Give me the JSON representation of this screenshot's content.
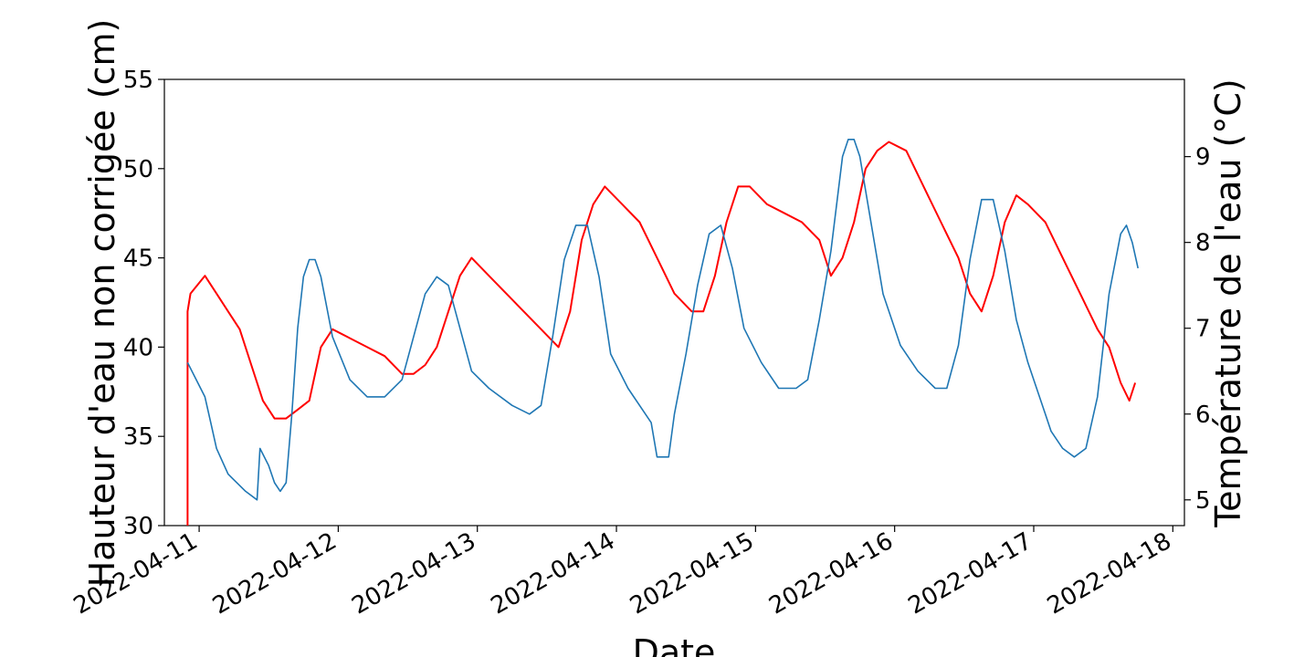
{
  "chart_data": {
    "type": "line",
    "title": "",
    "xlabel": "Date",
    "ylabel_left": "Hauteur d'eau non corrigée (cm)",
    "ylabel_right": "Température de l'eau (°C)",
    "x_tick_labels": [
      "2022-04-11",
      "2022-04-12",
      "2022-04-13",
      "2022-04-14",
      "2022-04-15",
      "2022-04-16",
      "2022-04-17",
      "2022-04-18"
    ],
    "y_left_ticks": [
      "30",
      "35",
      "40",
      "45",
      "50",
      "55"
    ],
    "y_right_ticks": [
      "5",
      "6",
      "7",
      "8",
      "9"
    ],
    "xlim": [
      "2022-04-10T18:00",
      "2022-04-18T02:00"
    ],
    "ylim_left": [
      30,
      55
    ],
    "ylim_right": [
      4.7,
      9.9
    ],
    "grid": false,
    "series": [
      {
        "axis": "left",
        "color": "#ff0000",
        "points": [
          [
            "2022-04-10T22:00",
            30
          ],
          [
            "2022-04-10T22:00",
            42
          ],
          [
            "2022-04-10T22:30",
            43
          ],
          [
            "2022-04-11T01:00",
            44
          ],
          [
            "2022-04-11T03:00",
            43
          ],
          [
            "2022-04-11T05:00",
            42
          ],
          [
            "2022-04-11T07:00",
            41
          ],
          [
            "2022-04-11T09:00",
            39
          ],
          [
            "2022-04-11T11:00",
            37
          ],
          [
            "2022-04-11T13:00",
            36
          ],
          [
            "2022-04-11T15:00",
            36
          ],
          [
            "2022-04-11T17:00",
            36.5
          ],
          [
            "2022-04-11T19:00",
            37
          ],
          [
            "2022-04-11T21:00",
            40
          ],
          [
            "2022-04-11T23:00",
            41
          ],
          [
            "2022-04-12T02:00",
            40.5
          ],
          [
            "2022-04-12T05:00",
            40
          ],
          [
            "2022-04-12T08:00",
            39.5
          ],
          [
            "2022-04-12T11:00",
            38.5
          ],
          [
            "2022-04-12T13:00",
            38.5
          ],
          [
            "2022-04-12T15:00",
            39
          ],
          [
            "2022-04-12T17:00",
            40
          ],
          [
            "2022-04-12T19:00",
            42
          ],
          [
            "2022-04-12T21:00",
            44
          ],
          [
            "2022-04-12T23:00",
            45
          ],
          [
            "2022-04-13T02:00",
            44
          ],
          [
            "2022-04-13T05:00",
            43
          ],
          [
            "2022-04-13T08:00",
            42
          ],
          [
            "2022-04-13T11:00",
            41
          ],
          [
            "2022-04-13T14:00",
            40
          ],
          [
            "2022-04-13T16:00",
            42
          ],
          [
            "2022-04-13T18:00",
            46
          ],
          [
            "2022-04-13T20:00",
            48
          ],
          [
            "2022-04-13T22:00",
            49
          ],
          [
            "2022-04-14T01:00",
            48
          ],
          [
            "2022-04-14T04:00",
            47
          ],
          [
            "2022-04-14T07:00",
            45
          ],
          [
            "2022-04-14T10:00",
            43
          ],
          [
            "2022-04-14T13:00",
            42
          ],
          [
            "2022-04-14T15:00",
            42
          ],
          [
            "2022-04-14T17:00",
            44
          ],
          [
            "2022-04-14T19:00",
            47
          ],
          [
            "2022-04-14T21:00",
            49
          ],
          [
            "2022-04-14T23:00",
            49
          ],
          [
            "2022-04-15T02:00",
            48
          ],
          [
            "2022-04-15T05:00",
            47.5
          ],
          [
            "2022-04-15T08:00",
            47
          ],
          [
            "2022-04-15T11:00",
            46
          ],
          [
            "2022-04-15T13:00",
            44
          ],
          [
            "2022-04-15T15:00",
            45
          ],
          [
            "2022-04-15T17:00",
            47
          ],
          [
            "2022-04-15T19:00",
            50
          ],
          [
            "2022-04-15T21:00",
            51
          ],
          [
            "2022-04-15T23:00",
            51.5
          ],
          [
            "2022-04-16T02:00",
            51
          ],
          [
            "2022-04-16T05:00",
            49
          ],
          [
            "2022-04-16T08:00",
            47
          ],
          [
            "2022-04-16T11:00",
            45
          ],
          [
            "2022-04-16T13:00",
            43
          ],
          [
            "2022-04-16T15:00",
            42
          ],
          [
            "2022-04-16T17:00",
            44
          ],
          [
            "2022-04-16T19:00",
            47
          ],
          [
            "2022-04-16T21:00",
            48.5
          ],
          [
            "2022-04-16T23:00",
            48
          ],
          [
            "2022-04-17T02:00",
            47
          ],
          [
            "2022-04-17T05:00",
            45
          ],
          [
            "2022-04-17T08:00",
            43
          ],
          [
            "2022-04-17T11:00",
            41
          ],
          [
            "2022-04-17T13:00",
            40
          ],
          [
            "2022-04-17T15:00",
            38
          ],
          [
            "2022-04-17T16:30",
            37
          ],
          [
            "2022-04-17T17:30",
            38
          ]
        ]
      },
      {
        "axis": "right",
        "color": "#1f77b4",
        "points": [
          [
            "2022-04-10T22:00",
            6.6
          ],
          [
            "2022-04-10T23:30",
            6.4
          ],
          [
            "2022-04-11T01:00",
            6.2
          ],
          [
            "2022-04-11T02:00",
            5.9
          ],
          [
            "2022-04-11T03:00",
            5.6
          ],
          [
            "2022-04-11T05:00",
            5.3
          ],
          [
            "2022-04-11T08:00",
            5.1
          ],
          [
            "2022-04-11T10:00",
            5.0
          ],
          [
            "2022-04-11T10:30",
            5.6
          ],
          [
            "2022-04-11T12:00",
            5.4
          ],
          [
            "2022-04-11T13:00",
            5.2
          ],
          [
            "2022-04-11T14:00",
            5.1
          ],
          [
            "2022-04-11T15:00",
            5.2
          ],
          [
            "2022-04-11T16:00",
            6.0
          ],
          [
            "2022-04-11T17:00",
            7.0
          ],
          [
            "2022-04-11T18:00",
            7.6
          ],
          [
            "2022-04-11T19:00",
            7.8
          ],
          [
            "2022-04-11T20:00",
            7.8
          ],
          [
            "2022-04-11T21:00",
            7.6
          ],
          [
            "2022-04-11T23:00",
            6.9
          ],
          [
            "2022-04-12T02:00",
            6.4
          ],
          [
            "2022-04-12T05:00",
            6.2
          ],
          [
            "2022-04-12T08:00",
            6.2
          ],
          [
            "2022-04-12T11:00",
            6.4
          ],
          [
            "2022-04-12T13:00",
            6.9
          ],
          [
            "2022-04-12T15:00",
            7.4
          ],
          [
            "2022-04-12T17:00",
            7.6
          ],
          [
            "2022-04-12T19:00",
            7.5
          ],
          [
            "2022-04-12T21:00",
            7.0
          ],
          [
            "2022-04-12T23:00",
            6.5
          ],
          [
            "2022-04-13T02:00",
            6.3
          ],
          [
            "2022-04-13T06:00",
            6.1
          ],
          [
            "2022-04-13T09:00",
            6.0
          ],
          [
            "2022-04-13T11:00",
            6.1
          ],
          [
            "2022-04-13T13:00",
            6.9
          ],
          [
            "2022-04-13T15:00",
            7.8
          ],
          [
            "2022-04-13T17:00",
            8.2
          ],
          [
            "2022-04-13T19:00",
            8.2
          ],
          [
            "2022-04-13T21:00",
            7.6
          ],
          [
            "2022-04-13T23:00",
            6.7
          ],
          [
            "2022-04-14T02:00",
            6.3
          ],
          [
            "2022-04-14T05:00",
            6.0
          ],
          [
            "2022-04-14T06:00",
            5.9
          ],
          [
            "2022-04-14T07:00",
            5.5
          ],
          [
            "2022-04-14T09:00",
            5.5
          ],
          [
            "2022-04-14T10:00",
            6.0
          ],
          [
            "2022-04-14T12:00",
            6.7
          ],
          [
            "2022-04-14T14:00",
            7.5
          ],
          [
            "2022-04-14T16:00",
            8.1
          ],
          [
            "2022-04-14T18:00",
            8.2
          ],
          [
            "2022-04-14T20:00",
            7.7
          ],
          [
            "2022-04-14T22:00",
            7.0
          ],
          [
            "2022-04-15T01:00",
            6.6
          ],
          [
            "2022-04-15T04:00",
            6.3
          ],
          [
            "2022-04-15T07:00",
            6.3
          ],
          [
            "2022-04-15T09:00",
            6.4
          ],
          [
            "2022-04-15T11:00",
            7.1
          ],
          [
            "2022-04-15T13:00",
            7.9
          ],
          [
            "2022-04-15T15:00",
            9.0
          ],
          [
            "2022-04-15T16:00",
            9.2
          ],
          [
            "2022-04-15T17:00",
            9.2
          ],
          [
            "2022-04-15T18:00",
            9.0
          ],
          [
            "2022-04-15T20:00",
            8.2
          ],
          [
            "2022-04-15T22:00",
            7.4
          ],
          [
            "2022-04-16T01:00",
            6.8
          ],
          [
            "2022-04-16T04:00",
            6.5
          ],
          [
            "2022-04-16T07:00",
            6.3
          ],
          [
            "2022-04-16T09:00",
            6.3
          ],
          [
            "2022-04-16T11:00",
            6.8
          ],
          [
            "2022-04-16T13:00",
            7.8
          ],
          [
            "2022-04-16T15:00",
            8.5
          ],
          [
            "2022-04-16T17:00",
            8.5
          ],
          [
            "2022-04-16T19:00",
            7.9
          ],
          [
            "2022-04-16T21:00",
            7.1
          ],
          [
            "2022-04-16T23:00",
            6.6
          ],
          [
            "2022-04-17T02:00",
            6.0
          ],
          [
            "2022-04-17T03:00",
            5.8
          ],
          [
            "2022-04-17T05:00",
            5.6
          ],
          [
            "2022-04-17T07:00",
            5.5
          ],
          [
            "2022-04-17T09:00",
            5.6
          ],
          [
            "2022-04-17T11:00",
            6.2
          ],
          [
            "2022-04-17T13:00",
            7.4
          ],
          [
            "2022-04-17T15:00",
            8.1
          ],
          [
            "2022-04-17T16:00",
            8.2
          ],
          [
            "2022-04-17T17:00",
            8.0
          ],
          [
            "2022-04-17T18:00",
            7.7
          ]
        ]
      }
    ]
  }
}
